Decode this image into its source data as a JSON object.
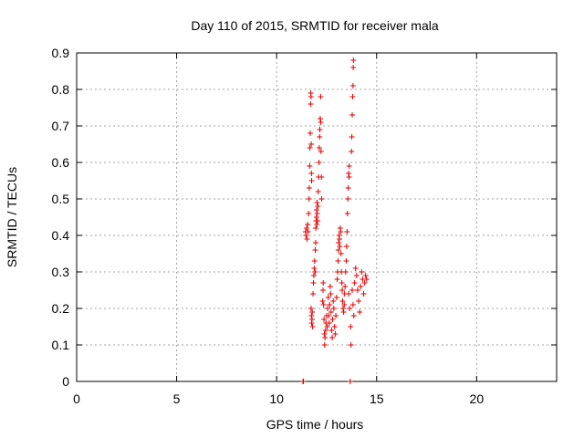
{
  "chart_data": {
    "type": "scatter",
    "title": "Day 110 of 2015, SRMTID for receiver mala",
    "xlabel": "GPS time / hours",
    "ylabel": "SRMTID / TECUs",
    "xlim": [
      0,
      24
    ],
    "ylim": [
      0,
      0.9
    ],
    "x_ticks": [
      "0",
      "5",
      "10",
      "15",
      "20"
    ],
    "y_ticks": [
      "0",
      "0.1",
      "0.2",
      "0.3",
      "0.4",
      "0.5",
      "0.6",
      "0.7",
      "0.8",
      "0.9"
    ],
    "grid": true,
    "marker": "+",
    "color": "#e00000",
    "series": [
      {
        "name": "SRMTID",
        "points": [
          [
            11.32,
            0.0
          ],
          [
            11.34,
            0.0
          ],
          [
            11.45,
            0.41
          ],
          [
            11.47,
            0.4
          ],
          [
            11.5,
            0.42
          ],
          [
            11.52,
            0.39
          ],
          [
            11.55,
            0.43
          ],
          [
            11.57,
            0.41
          ],
          [
            11.6,
            0.46
          ],
          [
            11.62,
            0.5
          ],
          [
            11.63,
            0.53
          ],
          [
            11.65,
            0.59
          ],
          [
            11.66,
            0.64
          ],
          [
            11.68,
            0.68
          ],
          [
            11.7,
            0.76
          ],
          [
            11.71,
            0.79
          ],
          [
            11.72,
            0.78
          ],
          [
            11.73,
            0.65
          ],
          [
            11.74,
            0.57
          ],
          [
            11.75,
            0.55
          ],
          [
            11.72,
            0.2
          ],
          [
            11.74,
            0.18
          ],
          [
            11.75,
            0.16
          ],
          [
            11.77,
            0.17
          ],
          [
            11.78,
            0.19
          ],
          [
            11.8,
            0.15
          ],
          [
            11.82,
            0.24
          ],
          [
            11.84,
            0.27
          ],
          [
            11.86,
            0.29
          ],
          [
            11.88,
            0.31
          ],
          [
            11.9,
            0.33
          ],
          [
            11.92,
            0.3
          ],
          [
            11.93,
            0.36
          ],
          [
            11.95,
            0.38
          ],
          [
            11.96,
            0.42
          ],
          [
            11.97,
            0.44
          ],
          [
            11.99,
            0.45
          ],
          [
            12.0,
            0.47
          ],
          [
            12.01,
            0.43
          ],
          [
            12.02,
            0.49
          ],
          [
            12.03,
            0.46
          ],
          [
            12.05,
            0.44
          ],
          [
            12.06,
            0.48
          ],
          [
            12.08,
            0.52
          ],
          [
            12.1,
            0.56
          ],
          [
            12.12,
            0.6
          ],
          [
            12.13,
            0.64
          ],
          [
            12.15,
            0.67
          ],
          [
            12.16,
            0.69
          ],
          [
            12.18,
            0.72
          ],
          [
            12.2,
            0.78
          ],
          [
            12.21,
            0.71
          ],
          [
            12.22,
            0.63
          ],
          [
            12.24,
            0.56
          ],
          [
            12.25,
            0.5
          ],
          [
            12.3,
            0.22
          ],
          [
            12.32,
            0.25
          ],
          [
            12.33,
            0.27
          ],
          [
            12.35,
            0.21
          ],
          [
            12.37,
            0.17
          ],
          [
            12.39,
            0.13
          ],
          [
            12.4,
            0.1
          ],
          [
            12.42,
            0.12
          ],
          [
            12.45,
            0.14
          ],
          [
            12.47,
            0.16
          ],
          [
            12.5,
            0.18
          ],
          [
            12.53,
            0.15
          ],
          [
            12.55,
            0.2
          ],
          [
            12.58,
            0.23
          ],
          [
            12.6,
            0.18
          ],
          [
            12.63,
            0.16
          ],
          [
            12.65,
            0.21
          ],
          [
            12.68,
            0.26
          ],
          [
            12.7,
            0.24
          ],
          [
            12.72,
            0.19
          ],
          [
            12.75,
            0.14
          ],
          [
            12.78,
            0.12
          ],
          [
            12.8,
            0.17
          ],
          [
            12.83,
            0.22
          ],
          [
            12.86,
            0.2
          ],
          [
            12.9,
            0.15
          ],
          [
            12.93,
            0.13
          ],
          [
            12.96,
            0.18
          ],
          [
            13.0,
            0.23
          ],
          [
            13.03,
            0.28
          ],
          [
            13.05,
            0.3
          ],
          [
            13.07,
            0.33
          ],
          [
            13.09,
            0.36
          ],
          [
            13.1,
            0.38
          ],
          [
            13.12,
            0.4
          ],
          [
            13.14,
            0.39
          ],
          [
            13.16,
            0.37
          ],
          [
            13.18,
            0.42
          ],
          [
            13.2,
            0.41
          ],
          [
            13.22,
            0.35
          ],
          [
            13.24,
            0.3
          ],
          [
            13.26,
            0.27
          ],
          [
            13.28,
            0.25
          ],
          [
            13.3,
            0.22
          ],
          [
            13.32,
            0.2
          ],
          [
            13.35,
            0.19
          ],
          [
            13.38,
            0.21
          ],
          [
            13.4,
            0.24
          ],
          [
            13.42,
            0.26
          ],
          [
            13.45,
            0.3
          ],
          [
            13.48,
            0.33
          ],
          [
            13.5,
            0.37
          ],
          [
            13.52,
            0.41
          ],
          [
            13.54,
            0.46
          ],
          [
            13.56,
            0.5
          ],
          [
            13.58,
            0.53
          ],
          [
            13.6,
            0.57
          ],
          [
            13.62,
            0.56
          ],
          [
            13.63,
            0.59
          ],
          [
            13.6,
            0.24
          ],
          [
            13.65,
            0.2
          ],
          [
            13.7,
            0.15
          ],
          [
            13.72,
            0.1
          ],
          [
            13.68,
            0.0
          ],
          [
            13.74,
            0.63
          ],
          [
            13.76,
            0.67
          ],
          [
            13.78,
            0.73
          ],
          [
            13.8,
            0.78
          ],
          [
            13.82,
            0.81
          ],
          [
            13.83,
            0.86
          ],
          [
            13.84,
            0.88
          ],
          [
            13.78,
            0.25
          ],
          [
            13.82,
            0.21
          ],
          [
            13.86,
            0.18
          ],
          [
            13.9,
            0.27
          ],
          [
            13.95,
            0.31
          ],
          [
            14.0,
            0.29
          ],
          [
            14.05,
            0.25
          ],
          [
            14.1,
            0.22
          ],
          [
            14.15,
            0.19
          ],
          [
            14.2,
            0.26
          ],
          [
            14.25,
            0.3
          ],
          [
            14.3,
            0.28
          ],
          [
            14.35,
            0.24
          ],
          [
            14.4,
            0.27
          ],
          [
            14.45,
            0.29
          ],
          [
            14.5,
            0.28
          ]
        ]
      }
    ]
  }
}
